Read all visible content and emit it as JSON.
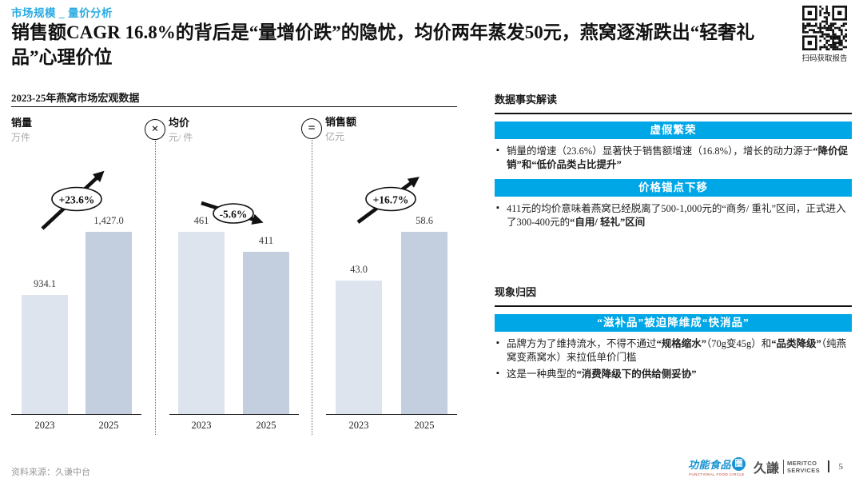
{
  "header": {
    "eyebrow": "市场规模 _ 量价分析",
    "title": "销售额CAGR 16.8%的背后是“量增价跌”的隐忧，均价两年蒸发50元，燕窝逐渐跌出“轻奢礼品”心理价位",
    "qr_caption": "扫码获取报告"
  },
  "chart_data": {
    "type": "bar",
    "title": "2023-25年燕窝市场宏观数据",
    "categories": [
      "2023",
      "2025"
    ],
    "legend_position": "top",
    "grid": false,
    "charts": [
      {
        "name": "销量",
        "unit": "万件",
        "operator": "",
        "values": [
          934.1,
          1427.0
        ],
        "labels": [
          "934.1",
          "1,427.0"
        ],
        "growth": "+23.6%",
        "trend": "up"
      },
      {
        "name": "均价",
        "unit": "元/ 件",
        "operator": "×",
        "values": [
          461,
          411
        ],
        "labels": [
          "461",
          "411"
        ],
        "growth": "-5.6%",
        "trend": "down"
      },
      {
        "name": "销售额",
        "unit": "亿元",
        "operator": "=",
        "values": [
          43.0,
          58.6
        ],
        "labels": [
          "43.0",
          "58.6"
        ],
        "growth": "+16.7%",
        "trend": "up"
      }
    ]
  },
  "right_panel": {
    "section1": {
      "heading": "数据事实解读",
      "blocks": [
        {
          "banner": "虚假繁荣",
          "bullets": [
            [
              {
                "t": "销量的增速（23.6%）显著快于销售额增速（16.8%），增长的动力源于",
                "b": 0
              },
              {
                "t": "“降价促销”和“低价品类占比提升”",
                "b": 1
              }
            ]
          ]
        },
        {
          "banner": "价格锚点下移",
          "bullets": [
            [
              {
                "t": "411元的均价意味着燕窝已经脱离了500-1,000元的“商务/ 重礼”区间，正式进入了300-400元的",
                "b": 0
              },
              {
                "t": "“自用/ 轻礼”区间",
                "b": 1
              }
            ]
          ]
        }
      ]
    },
    "section2": {
      "heading": "现象归因",
      "blocks": [
        {
          "banner": "“滋补品”被迫降维成“快消品”",
          "bullets": [
            [
              {
                "t": "品牌方为了维持流水，不得不通过",
                "b": 0
              },
              {
                "t": "“规格缩水”",
                "b": 1
              },
              {
                "t": "（70g变45g）和",
                "b": 0
              },
              {
                "t": "“品类降级”",
                "b": 1
              },
              {
                "t": "（纯燕窝变燕窝水）来拉低单价门槛",
                "b": 0
              }
            ],
            [
              {
                "t": "这是一种典型的",
                "b": 0
              },
              {
                "t": "“消费降级下的供给侧妥协”",
                "b": 1
              }
            ]
          ]
        }
      ]
    }
  },
  "footer": {
    "source": "资料来源：久谦中台",
    "logo_ffc": {
      "text": "功能食品",
      "badge": "圈",
      "subtext": "FUNCTIONAL FOOD CIRCLE"
    },
    "logo_meritco": {
      "cn": "久謙",
      "line1": "MERITCO",
      "line2": "SERVICES"
    },
    "page": "5"
  },
  "colors": {
    "accent": "#29abe2",
    "banner": "#00a7e7",
    "bar_2023": "#dde4ee",
    "bar_2025": "#c3cedf"
  }
}
